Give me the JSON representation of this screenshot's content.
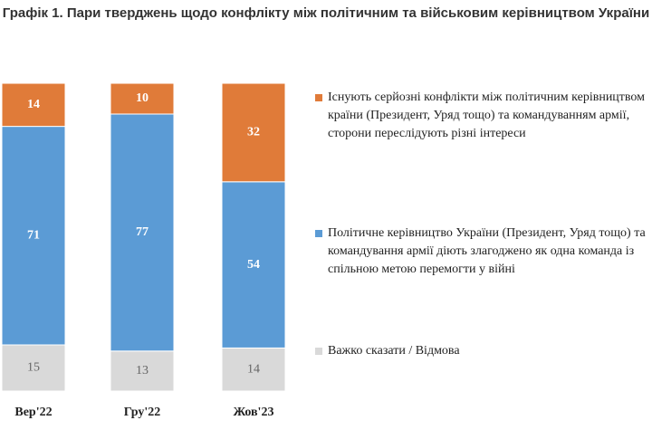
{
  "chart_data": {
    "type": "stacked_bar",
    "title": "Графік 1. Пари тверджень щодо конфлікту між політичним та військовим керівництвом України",
    "categories": [
      "Вер'22",
      "Гру'22",
      "Жов'23"
    ],
    "series": [
      {
        "name": "Важко сказати / Відмова",
        "color": "#d9d9d9",
        "values": [
          15,
          13,
          14
        ]
      },
      {
        "name": "Політичне керівництво України (Президент, Уряд тощо) та командування армії діють злагоджено як одна команда із спільною метою перемогти у війні",
        "color": "#5b9bd5",
        "values": [
          71,
          77,
          54
        ]
      },
      {
        "name": "Існують серйозні конфлікти між політичним керівництвом країни (Президент, Уряд тощо) та командуванням армії, сторони переслідують різні інтереси",
        "color": "#e07b39",
        "values": [
          14,
          10,
          32
        ]
      }
    ],
    "ylim": [
      0,
      100
    ]
  }
}
